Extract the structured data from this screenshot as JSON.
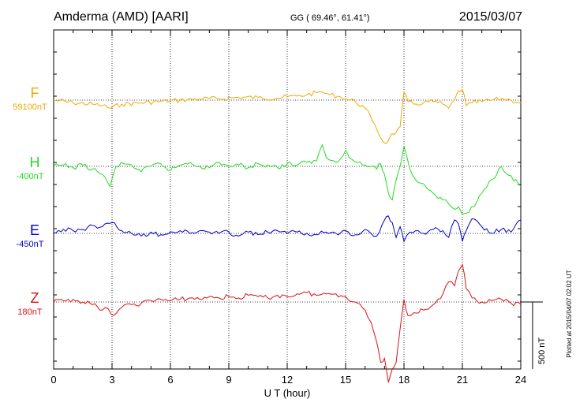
{
  "header": {
    "station": "Amderma (AMD)  [AARI]",
    "coords": "GG ( 69.46°,  61.41°)",
    "date": "2015/03/07"
  },
  "footer_note": "Plotted at 2015/04/07 02:02 UT",
  "chart_data": {
    "type": "line",
    "xlabel": "U T (hour)",
    "xlim": [
      0,
      24
    ],
    "xticks": [
      0,
      3,
      6,
      9,
      12,
      15,
      18,
      21,
      24
    ],
    "x_minor_step": 1,
    "scale_bar": {
      "label": "500 nT",
      "value_nT": 500
    },
    "series": [
      {
        "name": "F",
        "baseline_label": "59100nT",
        "color": "#f0a800",
        "x": [
          0,
          1,
          2,
          2.5,
          2.9,
          3.5,
          4.5,
          5.5,
          6.5,
          7.5,
          8.5,
          9.5,
          10.5,
          11.5,
          12,
          12.5,
          13,
          13.5,
          13.8,
          14.2,
          14.6,
          15,
          15.5,
          16,
          16.5,
          16.8,
          17,
          17.2,
          17.4,
          17.6,
          17.8,
          18,
          18.2,
          18.5,
          19,
          19.5,
          20,
          20.3,
          20.6,
          20.8,
          21,
          21.2,
          21.5,
          22,
          22.5,
          23,
          23.5,
          24
        ],
        "y": [
          0,
          -20,
          -30,
          -40,
          -60,
          -30,
          -20,
          -10,
          0,
          10,
          10,
          20,
          20,
          15,
          25,
          30,
          40,
          55,
          60,
          40,
          30,
          10,
          -10,
          -60,
          -180,
          -280,
          -320,
          -300,
          -250,
          -240,
          -200,
          60,
          -10,
          -30,
          -20,
          -10,
          -30,
          -60,
          0,
          70,
          80,
          -40,
          -20,
          -10,
          0,
          10,
          0,
          -20
        ]
      },
      {
        "name": "H",
        "baseline_label": "-400nT",
        "color": "#22dd22",
        "x": [
          0,
          0.5,
          1,
          1.5,
          2,
          2.5,
          2.9,
          3.2,
          3.6,
          4,
          4.5,
          5,
          5.5,
          6,
          6.5,
          7,
          7.5,
          8,
          8.5,
          9,
          9.5,
          10,
          10.5,
          11,
          11.5,
          12,
          12.5,
          13,
          13.5,
          13.8,
          14,
          14.5,
          15,
          15.2,
          15.6,
          16,
          16.3,
          16.6,
          16.8,
          17,
          17.2,
          17.4,
          17.6,
          17.8,
          18,
          18.3,
          18.6,
          19,
          19.5,
          20,
          20.3,
          20.6,
          20.8,
          21,
          21.2,
          21.6,
          22,
          22.5,
          23,
          23.5,
          24
        ],
        "y": [
          0,
          10,
          -10,
          10,
          -20,
          -60,
          -150,
          0,
          20,
          10,
          -40,
          0,
          20,
          -30,
          10,
          30,
          0,
          -10,
          30,
          0,
          10,
          -10,
          20,
          10,
          -10,
          20,
          10,
          30,
          40,
          160,
          70,
          30,
          120,
          60,
          30,
          10,
          0,
          -20,
          20,
          -60,
          -200,
          -250,
          -100,
          0,
          150,
          -20,
          -100,
          -130,
          -200,
          -250,
          -280,
          -320,
          -300,
          -360,
          -350,
          -300,
          -200,
          -100,
          0,
          -70,
          -150
        ]
      },
      {
        "name": "E",
        "baseline_label": "-450nT",
        "color": "#0000cc",
        "x": [
          0,
          0.5,
          1,
          1.5,
          2,
          2.5,
          3,
          3.5,
          4,
          4.5,
          5,
          5.5,
          6,
          6.5,
          7,
          7.5,
          8,
          8.5,
          9,
          9.5,
          10,
          10.5,
          11,
          11.5,
          12,
          12.5,
          13,
          13.5,
          14,
          14.5,
          15,
          15.5,
          16,
          16.3,
          16.6,
          17,
          17.2,
          17.4,
          17.6,
          17.8,
          18,
          18.3,
          18.6,
          19,
          19.5,
          20,
          20.3,
          20.6,
          20.8,
          21,
          21.2,
          21.5,
          22,
          22.5,
          23,
          23.5,
          24
        ],
        "y": [
          0,
          30,
          20,
          30,
          60,
          50,
          80,
          20,
          0,
          -20,
          10,
          -10,
          10,
          20,
          0,
          20,
          10,
          0,
          10,
          -20,
          10,
          -10,
          10,
          20,
          0,
          10,
          0,
          -10,
          10,
          0,
          20,
          -10,
          30,
          0,
          -20,
          100,
          130,
          80,
          -30,
          50,
          -60,
          10,
          20,
          0,
          30,
          20,
          -30,
          100,
          70,
          -60,
          20,
          110,
          50,
          0,
          30,
          10,
          100
        ]
      },
      {
        "name": "Z",
        "baseline_label": "180nT",
        "color": "#dd1111",
        "x": [
          0,
          0.5,
          1,
          1.5,
          2,
          2.5,
          2.8,
          3.1,
          3.5,
          4,
          4.5,
          5,
          5.5,
          6,
          6.5,
          7,
          7.5,
          8,
          8.5,
          9,
          9.5,
          10,
          10.5,
          11,
          11.5,
          12,
          12.5,
          13,
          13.5,
          14,
          14.5,
          15,
          15.5,
          16,
          16.3,
          16.6,
          16.8,
          17,
          17.2,
          17.4,
          17.6,
          17.8,
          18,
          18.2,
          18.5,
          19,
          19.5,
          20,
          20.3,
          20.6,
          20.8,
          21,
          21.2,
          21.5,
          22,
          22.5,
          23,
          23.5,
          24
        ],
        "y": [
          0,
          10,
          20,
          0,
          -20,
          -60,
          -50,
          -100,
          -40,
          -20,
          -10,
          10,
          20,
          10,
          20,
          30,
          20,
          40,
          30,
          40,
          30,
          50,
          40,
          30,
          50,
          40,
          60,
          70,
          50,
          60,
          60,
          40,
          0,
          -60,
          -150,
          -300,
          -450,
          -420,
          -600,
          -500,
          -450,
          -200,
          20,
          -100,
          -80,
          -60,
          -20,
          60,
          150,
          120,
          230,
          280,
          100,
          30,
          0,
          10,
          20,
          -10,
          -20
        ]
      }
    ]
  }
}
